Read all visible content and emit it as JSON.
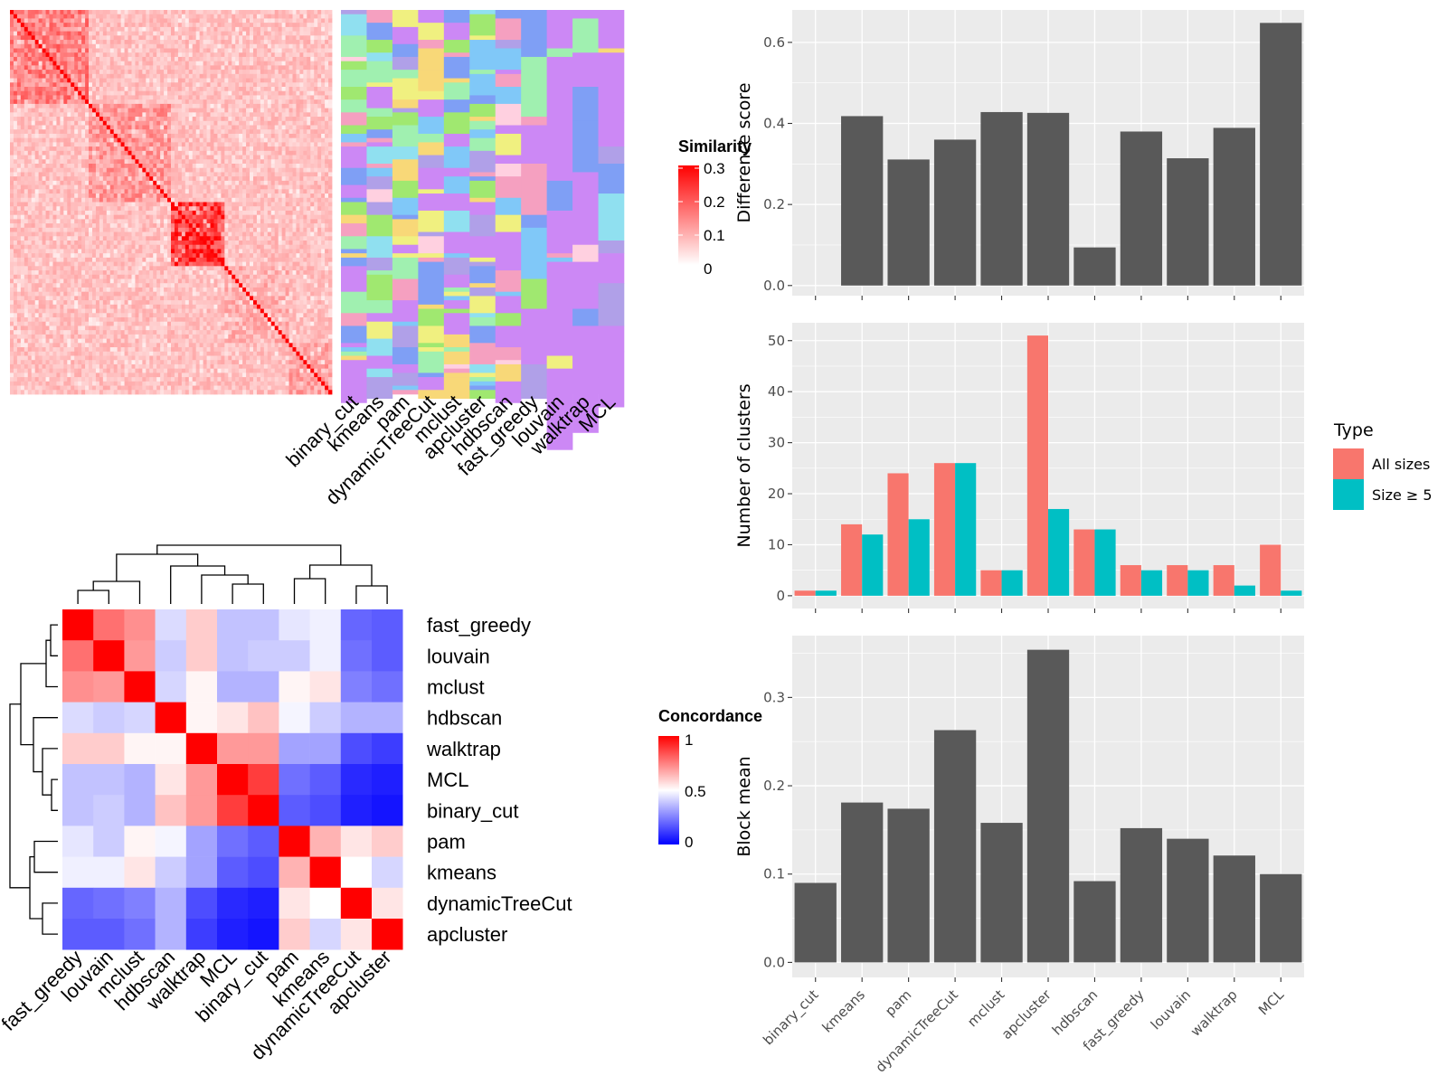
{
  "similarity_legend": {
    "title": "Similarity",
    "ticks": [
      "0.3",
      "0.2",
      "0.1",
      "0"
    ],
    "colors": [
      "#ffffff",
      "#ff0000"
    ]
  },
  "concordance_legend": {
    "title": "Concordance",
    "ticks": [
      "1",
      "0.5",
      "0"
    ],
    "colors": [
      "#0000ff",
      "#ffffff",
      "#ff0000"
    ]
  },
  "chart_data": [
    {
      "type": "heatmap",
      "description_role": "similarity matrix with cluster label columns",
      "label_columns": [
        "binary_cut",
        "kmeans",
        "pam",
        "dynamicTreeCut",
        "mclust",
        "apcluster",
        "hdbscan",
        "fast_greedy",
        "louvain",
        "walktrap",
        "MCL"
      ],
      "palette": [
        "#90e0f0",
        "#a0f0b0",
        "#f8d878",
        "#7f9ff5",
        "#f5a0c0",
        "#b0a0e8",
        "#f0f080",
        "#a0e870",
        "#ffd0e0",
        "#80c8f8"
      ],
      "background": "#cc88f5"
    },
    {
      "type": "heatmap",
      "name": "concordance",
      "rows": [
        "fast_greedy",
        "louvain",
        "mclust",
        "hdbscan",
        "walktrap",
        "MCL",
        "binary_cut",
        "pam",
        "kmeans",
        "dynamicTreeCut",
        "apcluster"
      ],
      "columns": [
        "fast_greedy",
        "louvain",
        "mclust",
        "hdbscan",
        "walktrap",
        "MCL",
        "binary_cut",
        "pam",
        "kmeans",
        "dynamicTreeCut",
        "apcluster"
      ],
      "values": [
        [
          1.0,
          0.78,
          0.72,
          0.43,
          0.6,
          0.38,
          0.38,
          0.45,
          0.47,
          0.2,
          0.18
        ],
        [
          0.78,
          1.0,
          0.7,
          0.4,
          0.6,
          0.38,
          0.4,
          0.4,
          0.47,
          0.22,
          0.18
        ],
        [
          0.72,
          0.7,
          1.0,
          0.42,
          0.52,
          0.35,
          0.35,
          0.52,
          0.55,
          0.25,
          0.22
        ],
        [
          0.43,
          0.4,
          0.42,
          1.0,
          0.52,
          0.55,
          0.62,
          0.48,
          0.4,
          0.35,
          0.35
        ],
        [
          0.6,
          0.6,
          0.52,
          0.52,
          1.0,
          0.7,
          0.7,
          0.32,
          0.32,
          0.15,
          0.12
        ],
        [
          0.38,
          0.38,
          0.35,
          0.55,
          0.7,
          1.0,
          0.88,
          0.22,
          0.18,
          0.08,
          0.06
        ],
        [
          0.38,
          0.4,
          0.35,
          0.62,
          0.7,
          0.88,
          1.0,
          0.18,
          0.15,
          0.06,
          0.04
        ],
        [
          0.45,
          0.4,
          0.52,
          0.48,
          0.32,
          0.22,
          0.18,
          1.0,
          0.65,
          0.55,
          0.6
        ],
        [
          0.47,
          0.47,
          0.55,
          0.4,
          0.32,
          0.18,
          0.15,
          0.65,
          1.0,
          0.5,
          0.42
        ],
        [
          0.2,
          0.22,
          0.25,
          0.35,
          0.15,
          0.08,
          0.06,
          0.55,
          0.5,
          1.0,
          0.55
        ],
        [
          0.18,
          0.18,
          0.22,
          0.35,
          0.12,
          0.06,
          0.04,
          0.6,
          0.42,
          0.55,
          1.0
        ]
      ]
    },
    {
      "type": "bar",
      "categories": [
        "binary_cut",
        "kmeans",
        "pam",
        "dynamicTreeCut",
        "mclust",
        "apcluster",
        "hdbscan",
        "fast_greedy",
        "louvain",
        "walktrap",
        "MCL"
      ],
      "values": [
        0,
        0.418,
        0.311,
        0.36,
        0.428,
        0.426,
        0.094,
        0.38,
        0.314,
        0.389,
        0.648
      ],
      "ylabel": "Difference score",
      "yticks": [
        "0.0",
        "0.2",
        "0.4",
        "0.6"
      ],
      "ylim": [
        -0.025,
        0.68
      ],
      "grid": true
    },
    {
      "type": "bar",
      "categories": [
        "binary_cut",
        "kmeans",
        "pam",
        "dynamicTreeCut",
        "mclust",
        "apcluster",
        "hdbscan",
        "fast_greedy",
        "louvain",
        "walktrap",
        "MCL"
      ],
      "series": [
        {
          "name": "All sizes",
          "color": "#f8766d",
          "values": [
            1,
            14,
            24,
            26,
            5,
            51,
            13,
            6,
            6,
            6,
            10
          ]
        },
        {
          "name": "Size ≥ 5",
          "color": "#00bfc4",
          "values": [
            1,
            12,
            15,
            26,
            5,
            17,
            13,
            5,
            5,
            2,
            1
          ]
        }
      ],
      "ylabel": "Number of clusters",
      "yticks": [
        "0",
        "10",
        "20",
        "30",
        "40",
        "50"
      ],
      "ylim": [
        -2.5,
        53.5
      ],
      "legend": {
        "title": "Type",
        "position": "right"
      },
      "grid": true
    },
    {
      "type": "bar",
      "categories": [
        "binary_cut",
        "kmeans",
        "pam",
        "dynamicTreeCut",
        "mclust",
        "apcluster",
        "hdbscan",
        "fast_greedy",
        "louvain",
        "walktrap",
        "MCL"
      ],
      "values": [
        0.09,
        0.181,
        0.174,
        0.263,
        0.158,
        0.354,
        0.092,
        0.152,
        0.14,
        0.121,
        0.1
      ],
      "ylabel": "Block mean",
      "yticks": [
        "0.0",
        "0.1",
        "0.2",
        "0.3"
      ],
      "ylim": [
        -0.017,
        0.37
      ],
      "grid": true
    }
  ]
}
